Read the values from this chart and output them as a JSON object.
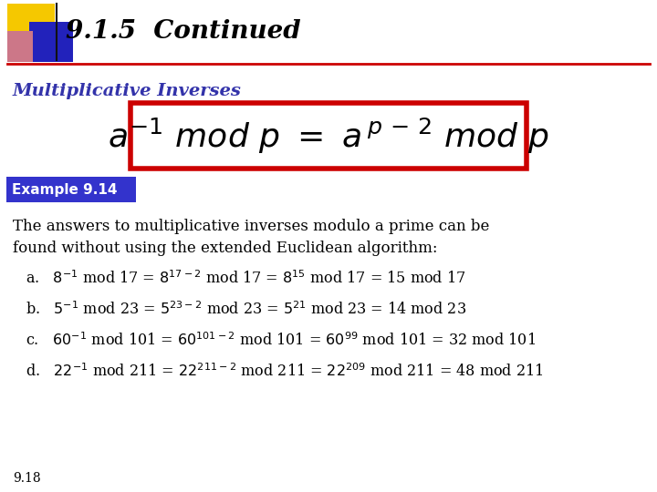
{
  "title": "9.1.5  Continued",
  "subtitle": "Multiplicative Inverses",
  "example_label": "Example 9.14",
  "footer": "9.18",
  "bg_color": "#ffffff",
  "title_color": "#000000",
  "subtitle_color": "#3333aa",
  "formula_box_border": "#cc0000",
  "example_bg": "#3333cc",
  "example_text_color": "#ffffff",
  "body_color": "#000000",
  "header_bar_color": "#cc0000",
  "square_yellow": "#f5c800",
  "square_blue": "#2222bb",
  "square_pink": "#cc7788",
  "figw": 7.2,
  "figh": 5.4,
  "dpi": 100
}
